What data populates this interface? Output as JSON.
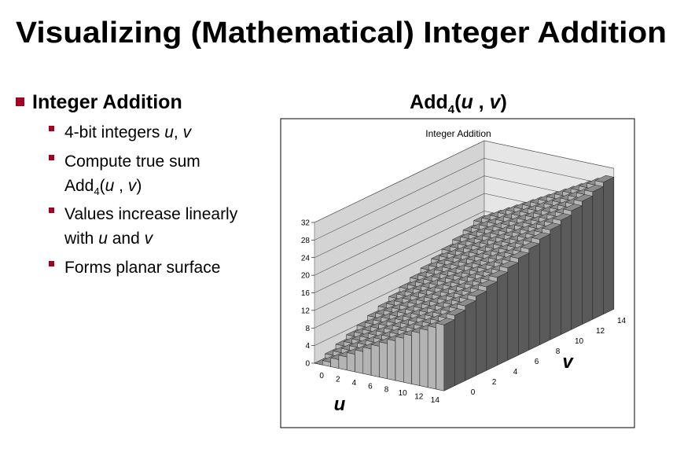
{
  "slide": {
    "title": "Visualizing (Mathematical) Integer Addition",
    "bullet": "Integer Addition",
    "sub_bullets": [
      [
        "4-bit integers ",
        "u",
        ", ",
        "v"
      ],
      [
        "Compute true sum",
        "Add",
        "4",
        "(",
        "u",
        " , ",
        "v",
        ")"
      ],
      [
        "Values increase linearly",
        "with ",
        "u",
        " and ",
        "v"
      ],
      [
        "Forms planar surface"
      ]
    ],
    "chart_heading": [
      "Add",
      "4",
      "(",
      "u",
      " , ",
      "v",
      ")"
    ]
  },
  "chart_data": {
    "type": "bar3d",
    "title": "Integer Addition",
    "x_label": "u",
    "y_label": "v",
    "x": [
      0,
      1,
      2,
      3,
      4,
      5,
      6,
      7,
      8,
      9,
      10,
      11,
      12,
      13,
      14,
      15
    ],
    "y": [
      0,
      1,
      2,
      3,
      4,
      5,
      6,
      7,
      8,
      9,
      10,
      11,
      12,
      13,
      14,
      15
    ],
    "values": [
      [
        0,
        1,
        2,
        3,
        4,
        5,
        6,
        7,
        8,
        9,
        10,
        11,
        12,
        13,
        14,
        15
      ],
      [
        1,
        2,
        3,
        4,
        5,
        6,
        7,
        8,
        9,
        10,
        11,
        12,
        13,
        14,
        15,
        16
      ],
      [
        2,
        3,
        4,
        5,
        6,
        7,
        8,
        9,
        10,
        11,
        12,
        13,
        14,
        15,
        16,
        17
      ],
      [
        3,
        4,
        5,
        6,
        7,
        8,
        9,
        10,
        11,
        12,
        13,
        14,
        15,
        16,
        17,
        18
      ],
      [
        4,
        5,
        6,
        7,
        8,
        9,
        10,
        11,
        12,
        13,
        14,
        15,
        16,
        17,
        18,
        19
      ],
      [
        5,
        6,
        7,
        8,
        9,
        10,
        11,
        12,
        13,
        14,
        15,
        16,
        17,
        18,
        19,
        20
      ],
      [
        6,
        7,
        8,
        9,
        10,
        11,
        12,
        13,
        14,
        15,
        16,
        17,
        18,
        19,
        20,
        21
      ],
      [
        7,
        8,
        9,
        10,
        11,
        12,
        13,
        14,
        15,
        16,
        17,
        18,
        19,
        20,
        21,
        22
      ],
      [
        8,
        9,
        10,
        11,
        12,
        13,
        14,
        15,
        16,
        17,
        18,
        19,
        20,
        21,
        22,
        23
      ],
      [
        9,
        10,
        11,
        12,
        13,
        14,
        15,
        16,
        17,
        18,
        19,
        20,
        21,
        22,
        23,
        24
      ],
      [
        10,
        11,
        12,
        13,
        14,
        15,
        16,
        17,
        18,
        19,
        20,
        21,
        22,
        23,
        24,
        25
      ],
      [
        11,
        12,
        13,
        14,
        15,
        16,
        17,
        18,
        19,
        20,
        21,
        22,
        23,
        24,
        25,
        26
      ],
      [
        12,
        13,
        14,
        15,
        16,
        17,
        18,
        19,
        20,
        21,
        22,
        23,
        24,
        25,
        26,
        27
      ],
      [
        13,
        14,
        15,
        16,
        17,
        18,
        19,
        20,
        21,
        22,
        23,
        24,
        25,
        26,
        27,
        28
      ],
      [
        14,
        15,
        16,
        17,
        18,
        19,
        20,
        21,
        22,
        23,
        24,
        25,
        26,
        27,
        28,
        29
      ],
      [
        15,
        16,
        17,
        18,
        19,
        20,
        21,
        22,
        23,
        24,
        25,
        26,
        27,
        28,
        29,
        30
      ]
    ],
    "xticks": [
      0,
      2,
      4,
      6,
      8,
      10,
      12,
      14
    ],
    "yticks": [
      0,
      2,
      4,
      6,
      8,
      10,
      12,
      14
    ],
    "zlim": [
      0,
      32
    ],
    "zticks": [
      0,
      4,
      8,
      12,
      16,
      20,
      24,
      28,
      32
    ],
    "grid": true
  }
}
